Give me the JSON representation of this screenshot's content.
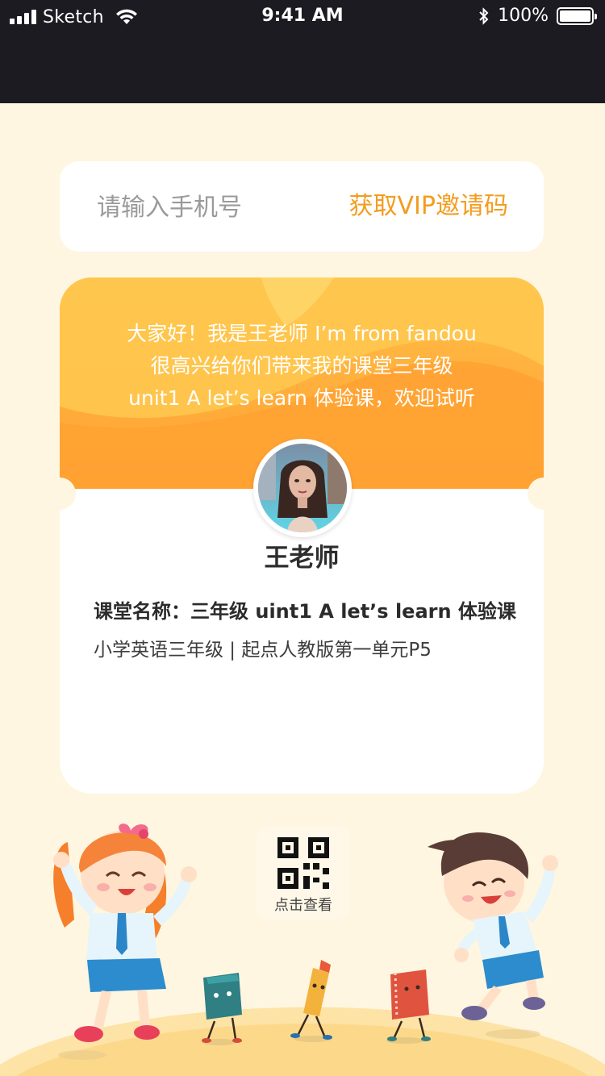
{
  "status_bar": {
    "carrier": "Sketch",
    "time": "9:41 AM",
    "battery": "100%",
    "battery_level": 1.0,
    "icons": [
      "signal-icon",
      "wifi-icon",
      "bluetooth-icon",
      "battery-icon"
    ]
  },
  "phone_form": {
    "placeholder": "请输入手机号",
    "value": "",
    "get_code_label": "获取VIP邀请码"
  },
  "teacher_card": {
    "intro_lines": [
      "大家好！我是王老师 I’m from fandou",
      "很高兴给你们带来我的课堂三年级",
      "unit1 A let’s learn 体验课，欢迎试听"
    ],
    "teacher_name": "王老师",
    "course_name": "课堂名称：三年级 uint1 A let’s learn 体验课",
    "course_sub": "小学英语三年级 | 起点人教版第一单元P5"
  },
  "qr": {
    "label": "点击查看",
    "icon": "qr-code-icon"
  },
  "colors": {
    "accent": "#f39c1f",
    "background": "#fef6e0",
    "card_top": "#ffae3c",
    "status_bar": "#1c1b22"
  }
}
